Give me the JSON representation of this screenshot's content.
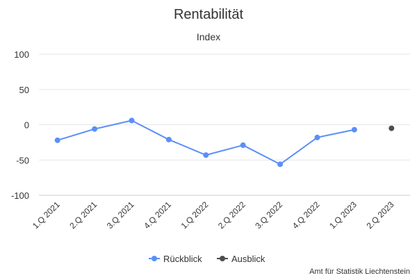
{
  "chart_data": {
    "type": "line",
    "title": "Rentabilität",
    "subtitle": "Index",
    "categories": [
      "1.Q 2021",
      "2.Q 2021",
      "3.Q 2021",
      "4.Q 2021",
      "1.Q 2022",
      "2.Q 2022",
      "3.Q 2022",
      "4.Q 2022",
      "1.Q 2023",
      "2.Q 2023"
    ],
    "series": [
      {
        "name": "Rückblick",
        "color": "#5B8FF9",
        "values": [
          -22,
          -6,
          6,
          -21,
          -43,
          -29,
          -56,
          -18,
          -7,
          null
        ]
      },
      {
        "name": "Ausblick",
        "color": "#4D4D4D",
        "values": [
          null,
          null,
          null,
          null,
          null,
          null,
          null,
          null,
          null,
          -5
        ]
      }
    ],
    "ylim": [
      -100,
      100
    ],
    "yticks": [
      100,
      50,
      0,
      -50,
      -100
    ],
    "ytick_labels": [
      "100",
      "50",
      "0",
      "-50",
      "-100"
    ],
    "grid": true,
    "legend": "bottom-center",
    "credit": "Amt für Statistik Liechtenstein"
  }
}
